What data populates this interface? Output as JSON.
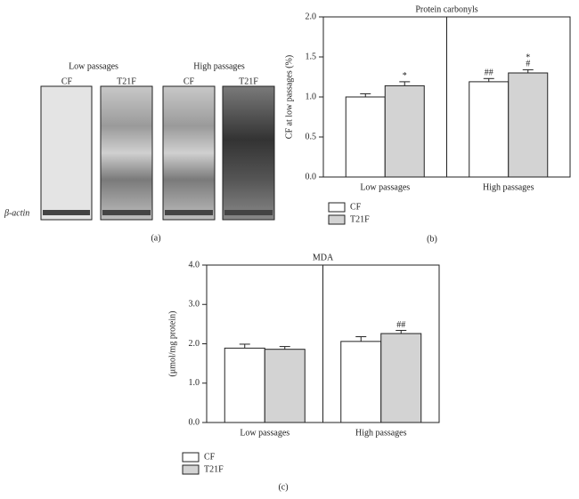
{
  "blot": {
    "groups": [
      "Low passages",
      "High passages"
    ],
    "lanes": [
      "CF",
      "T21F",
      "CF",
      "T21F"
    ],
    "loading_control": "β-actin",
    "panel_label": "(a)"
  },
  "chart_data": [
    {
      "type": "bar",
      "title": "Protein carbonyls",
      "ylabel": "CF at low passages (%)",
      "panel_label": "(b)",
      "categories": [
        "Low passages",
        "High passages"
      ],
      "series": [
        {
          "name": "CF",
          "color": "#ffffff",
          "values": [
            1.0,
            1.19
          ],
          "errors": [
            0.04,
            0.04
          ],
          "annotations": [
            null,
            "##"
          ]
        },
        {
          "name": "T21F",
          "color": "#d3d3d3",
          "values": [
            1.14,
            1.3
          ],
          "errors": [
            0.05,
            0.04
          ],
          "annotations": [
            "*",
            [
              "*",
              "#"
            ]
          ]
        }
      ],
      "ylim": [
        0,
        2
      ],
      "yticks": [
        {
          "value": 0,
          "label": "0.0"
        },
        {
          "value": 0.5,
          "label": "0.5"
        },
        {
          "value": 1,
          "label": "1.0"
        },
        {
          "value": 1.5,
          "label": "1.5"
        },
        {
          "value": 2,
          "label": "2.0"
        }
      ]
    },
    {
      "type": "bar",
      "title": "MDA",
      "ylabel": "(μmol/mg protein)",
      "panel_label": "(c)",
      "categories": [
        "Low passages",
        "High passages"
      ],
      "series": [
        {
          "name": "CF",
          "color": "#ffffff",
          "values": [
            1.89,
            2.06
          ],
          "errors": [
            0.1,
            0.12
          ],
          "annotations": [
            null,
            null
          ]
        },
        {
          "name": "T21F",
          "color": "#d3d3d3",
          "values": [
            1.86,
            2.26
          ],
          "errors": [
            0.07,
            0.08
          ],
          "annotations": [
            null,
            "##"
          ]
        }
      ],
      "ylim": [
        0,
        4
      ],
      "yticks": [
        {
          "value": 0,
          "label": "0.0"
        },
        {
          "value": 1,
          "label": "1.0"
        },
        {
          "value": 2,
          "label": "2.0"
        },
        {
          "value": 3,
          "label": "3.0"
        },
        {
          "value": 4,
          "label": "4.0"
        }
      ]
    }
  ]
}
